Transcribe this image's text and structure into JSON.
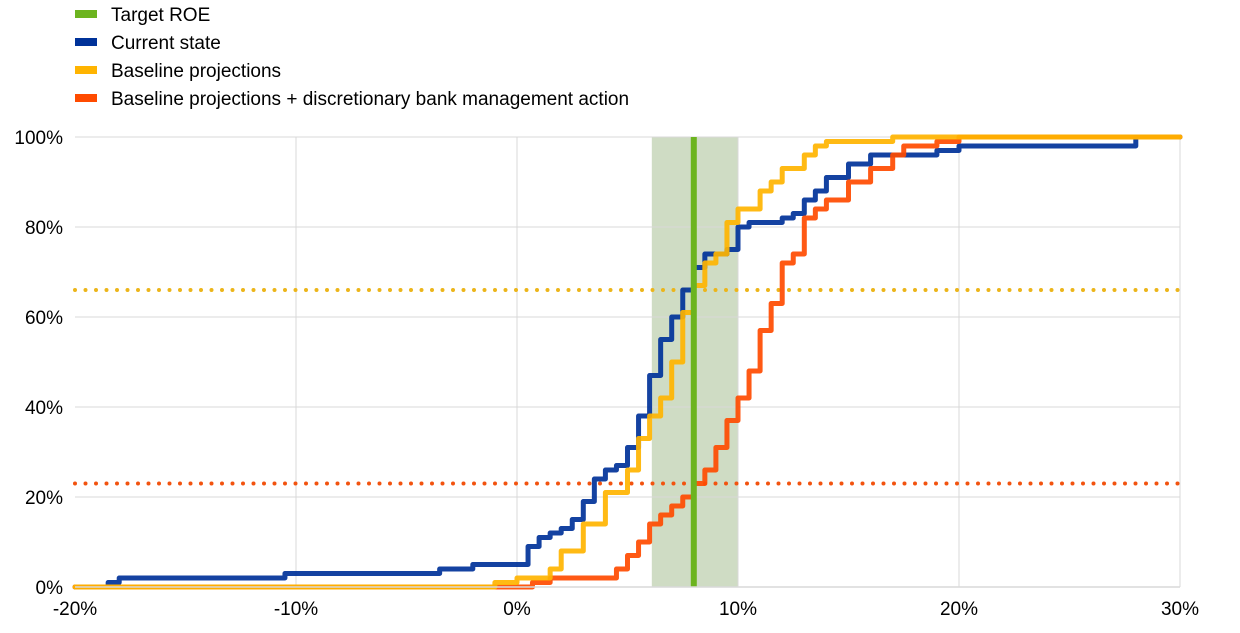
{
  "chart_data": {
    "type": "line",
    "title": "",
    "xlabel": "",
    "ylabel": "",
    "xlim": [
      -20,
      30
    ],
    "ylim": [
      0,
      100
    ],
    "x_ticks": [
      -20,
      -10,
      0,
      10,
      20,
      30
    ],
    "y_ticks": [
      0,
      20,
      40,
      60,
      80,
      100
    ],
    "x_tick_labels": [
      "-20%",
      "-10%",
      "0%",
      "10%",
      "20%",
      "30%"
    ],
    "y_tick_labels": [
      "0%",
      "20%",
      "40%",
      "60%",
      "80%",
      "100%"
    ],
    "grid": "vertical and horizontal, light grey",
    "legend_position": "top-left, above plot",
    "shaded_band": {
      "x_from": 6.1,
      "x_to": 10.0,
      "color": "#cfdcc4"
    },
    "reference_lines": [
      {
        "type": "horizontal",
        "y": 66,
        "style": "dotted",
        "color": "#ecb51a"
      },
      {
        "type": "horizontal",
        "y": 23,
        "style": "dotted",
        "color": "#f2530f"
      }
    ],
    "series": [
      {
        "name": "Target ROE",
        "color": "#6cb41f",
        "kind": "vertical",
        "x": [
          8.0,
          8.0
        ],
        "y": [
          0,
          100
        ]
      },
      {
        "name": "Current state",
        "color": "#003299",
        "kind": "step",
        "x": [
          -20,
          -19,
          -18.5,
          -18,
          -11,
          -10.5,
          -3.5,
          -2,
          -1,
          0.5,
          1,
          1.5,
          2,
          2.5,
          3,
          3.5,
          4,
          4.5,
          5,
          5.5,
          6,
          6.5,
          7,
          7.5,
          8,
          8.5,
          9,
          9.5,
          10,
          10.5,
          11,
          12,
          12.5,
          13,
          13.5,
          14,
          15,
          16,
          17,
          18,
          19,
          20,
          25,
          27.8,
          28,
          30
        ],
        "y": [
          0,
          0,
          1,
          2,
          2,
          3,
          4,
          5,
          5,
          9,
          11,
          12,
          13,
          15,
          19,
          24,
          26,
          27,
          31,
          38,
          47,
          55,
          60,
          66,
          71,
          74,
          74,
          75,
          80,
          81,
          81,
          82,
          83,
          86,
          88,
          91,
          94,
          96,
          96,
          96,
          97,
          98,
          98,
          98,
          100,
          100
        ]
      },
      {
        "name": "Baseline projections",
        "color": "#ffb400",
        "kind": "step",
        "x": [
          -20,
          -3,
          -1,
          0,
          1,
          1.5,
          2,
          3,
          4,
          5,
          5.5,
          6,
          6.5,
          7,
          7.5,
          8,
          8.5,
          9,
          9.5,
          10,
          11,
          11.5,
          12,
          13,
          13.5,
          14,
          15,
          16,
          17,
          18,
          30
        ],
        "y": [
          0,
          0,
          1,
          2,
          2,
          4,
          8,
          14,
          21,
          26,
          33,
          38,
          42,
          50,
          61,
          67,
          72,
          74,
          81,
          84,
          88,
          90,
          93,
          96,
          98,
          99,
          99,
          99,
          100,
          100,
          100
        ]
      },
      {
        "name": "Baseline projections + discretionary bank management action",
        "color": "#ff4b00",
        "kind": "step",
        "x": [
          -20,
          0,
          0.7,
          1.5,
          2,
          4.3,
          4.5,
          5,
          5.5,
          6,
          6.5,
          7,
          7.5,
          8,
          8.5,
          9,
          9.5,
          10,
          10.5,
          11,
          11.5,
          12,
          12.5,
          13,
          13.5,
          14,
          15,
          16,
          17,
          17.5,
          18,
          19,
          20,
          25,
          30
        ],
        "y": [
          0,
          0,
          1,
          2,
          2,
          2,
          4,
          7,
          10,
          14,
          16,
          18,
          20,
          23,
          26,
          31,
          37,
          42,
          48,
          57,
          63,
          72,
          74,
          82,
          84,
          86,
          90,
          93,
          96,
          98,
          98,
          99,
          100,
          100,
          100
        ]
      }
    ]
  }
}
